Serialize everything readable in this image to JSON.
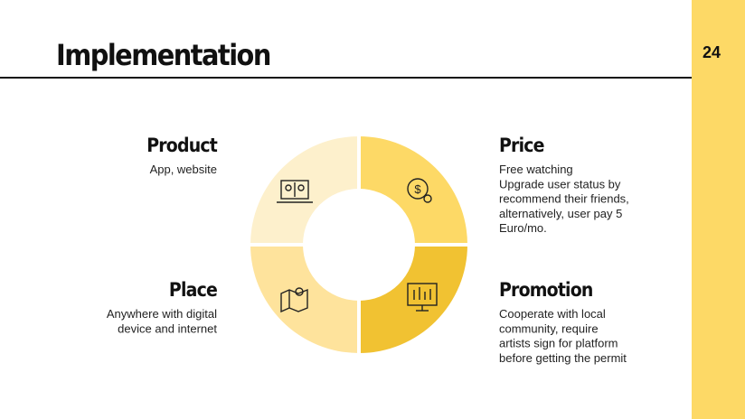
{
  "header": {
    "title": "Implementation",
    "page_number": "24"
  },
  "quadrants": [
    {
      "title": "Product",
      "lines": [
        "App, website"
      ]
    },
    {
      "title": "Price",
      "lines": [
        "Free watching",
        "Upgrade user status by",
        "recommend their friends,",
        "alternatively, user pay 5",
        "Euro/mo."
      ]
    },
    {
      "title": "Place",
      "lines": [
        "Anywhere with digital",
        "device and internet"
      ]
    },
    {
      "title": "Promotion",
      "lines": [
        "Cooperate with local",
        "community, require",
        "artists sign for platform",
        "before getting the permit"
      ]
    }
  ]
}
